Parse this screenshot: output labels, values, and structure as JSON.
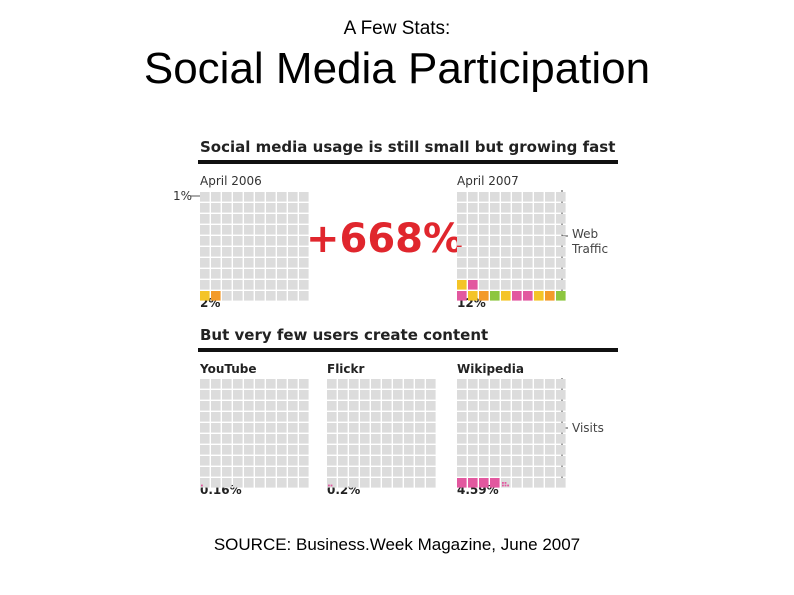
{
  "slide": {
    "subtitle": "A Few Stats:",
    "title": "Social Media Participation",
    "source": "SOURCE: Business.Week Magazine, June 2007"
  },
  "figure": {
    "heading_top": "Social media usage is still small but growing fast",
    "heading_bottom": "But very few users create content",
    "scale_label": "1%",
    "growth_label": "+668%",
    "side_label_top": [
      "Web",
      "Traffic"
    ],
    "side_label_bottom": "Visits"
  },
  "colors": {
    "grid": "#dcdcdc",
    "accent_red": "#e0262d",
    "pink": "#e2589f",
    "yellow": "#f4c428",
    "orange": "#f39a2a",
    "green": "#8dc63f"
  },
  "chart_data": [
    {
      "type": "waffle",
      "title": "Social media usage is still small but growing fast",
      "annotation": "+668%",
      "ylabel": "Web Traffic",
      "panels": [
        {
          "name": "April 2006",
          "value": 2,
          "value_label": "2%"
        },
        {
          "name": "April 2007",
          "value": 12,
          "value_label": "12%"
        }
      ]
    },
    {
      "type": "waffle",
      "title": "But very few users create content",
      "ylabel": "Visits",
      "panels": [
        {
          "name": "YouTube",
          "value": 0.16,
          "value_label": "0.16%"
        },
        {
          "name": "Flickr",
          "value": 0.2,
          "value_label": "0.2%"
        },
        {
          "name": "Wikipedia",
          "value": 4.59,
          "value_label": "4.59%"
        }
      ]
    }
  ]
}
